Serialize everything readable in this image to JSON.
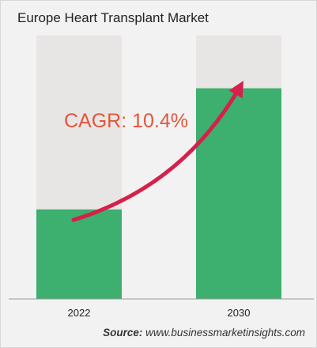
{
  "title": "Europe Heart Transplant Market",
  "source_label": "Source:",
  "source_url": "www.businessmarketinsights.com",
  "annotation": "CAGR: 10.4%",
  "colors": {
    "bar": "#3daf6e",
    "track": "#e8e5e5",
    "arrow": "#d6204b",
    "annotation": "#e2573a"
  },
  "chart_data": {
    "type": "bar",
    "title": "Europe Heart Transplant Market",
    "categories": [
      "2022",
      "2030"
    ],
    "values": [
      0.34,
      0.8
    ],
    "ylim": [
      0,
      1
    ],
    "grid": false,
    "legend": "none",
    "annotation": "CAGR: 10.4%"
  }
}
